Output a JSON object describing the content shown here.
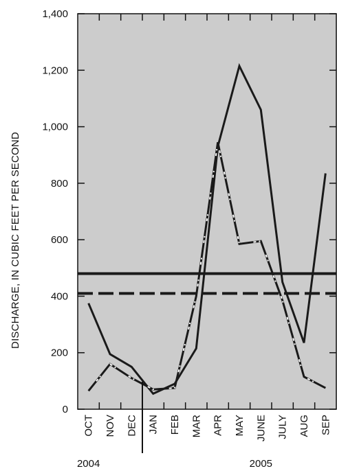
{
  "chart_data": {
    "type": "line",
    "ylabel": "DISCHARGE, IN CUBIC FEET PER SECOND",
    "ylim": [
      0,
      1400
    ],
    "y_ticks": [
      0,
      200,
      400,
      600,
      800,
      1000,
      1200,
      1400
    ],
    "y_tick_labels": [
      "0",
      "200",
      "400",
      "600",
      "800",
      "1,000",
      "1,200",
      "1,400"
    ],
    "categories": [
      "OCT",
      "NOV",
      "DEC",
      "JAN",
      "FEB",
      "MAR",
      "APR",
      "MAY",
      "JUNE",
      "JULY",
      "AUG",
      "SEP"
    ],
    "year_labels": [
      {
        "text": "2004",
        "at_category": 0
      },
      {
        "text": "2005",
        "at_category": 8
      }
    ],
    "year_divider_after_category": 2,
    "grid": false,
    "background": "#cccccc",
    "series": [
      {
        "style": "solid",
        "color": "#1a1a1a",
        "values": [
          375,
          195,
          150,
          55,
          90,
          215,
          930,
          1215,
          1060,
          450,
          235,
          835
        ]
      },
      {
        "style": "dash-dot",
        "color": "#1a1a1a",
        "values": [
          65,
          160,
          110,
          70,
          75,
          400,
          945,
          585,
          595,
          385,
          115,
          75
        ]
      }
    ],
    "reference_lines": [
      {
        "style": "solid",
        "value": 480,
        "color": "#1a1a1a"
      },
      {
        "style": "dashed",
        "value": 410,
        "color": "#1a1a1a"
      }
    ]
  }
}
